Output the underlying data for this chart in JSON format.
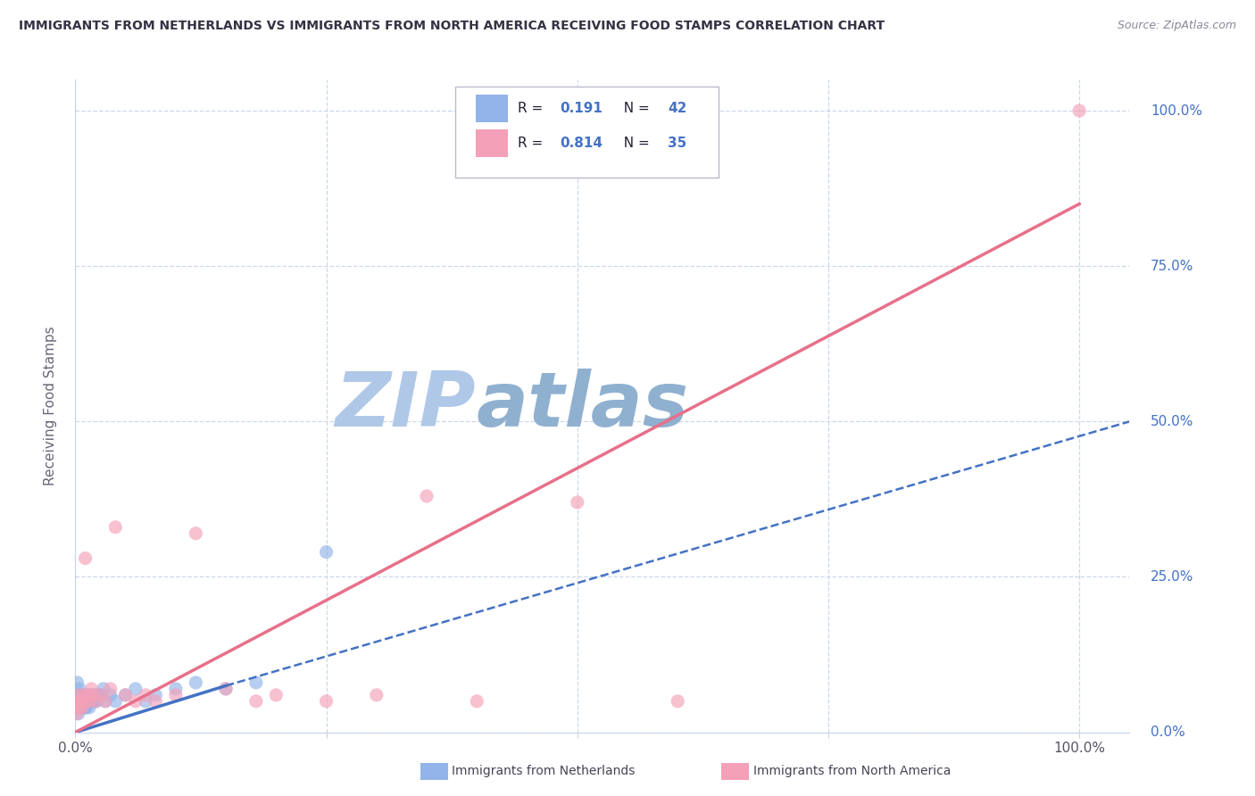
{
  "title": "IMMIGRANTS FROM NETHERLANDS VS IMMIGRANTS FROM NORTH AMERICA RECEIVING FOOD STAMPS CORRELATION CHART",
  "source": "Source: ZipAtlas.com",
  "ylabel": "Receiving Food Stamps",
  "xlabel_netherlands": "Immigrants from Netherlands",
  "xlabel_north_america": "Immigrants from North America",
  "r_netherlands": 0.191,
  "n_netherlands": 42,
  "r_north_america": 0.814,
  "n_north_america": 35,
  "color_netherlands": "#92b4e8",
  "color_north_america": "#f4a0b8",
  "color_blue_text": "#4472c4",
  "trend_netherlands_solid_color": "#4472c4",
  "trend_netherlands_dash_color": "#4472c4",
  "trend_north_america_color": "#e8708a",
  "background_color": "#ffffff",
  "grid_color": "#c8d4e8",
  "watermark": "ZIPatlas",
  "watermark_color_zip": "#b0c8e8",
  "watermark_color_atlas": "#90b0d0",
  "ylim": [
    0.0,
    1.05
  ],
  "xlim": [
    0.0,
    1.05
  ],
  "ytick_labels": [
    "0.0%",
    "25.0%",
    "50.0%",
    "75.0%",
    "100.0%"
  ],
  "ytick_vals": [
    0.0,
    0.25,
    0.5,
    0.75,
    1.0
  ],
  "xtick_labels": [
    "0.0%",
    "",
    "",
    "",
    "100.0%"
  ],
  "xtick_vals": [
    0.0,
    0.25,
    0.5,
    0.75,
    1.0
  ],
  "nl_x": [
    0.001,
    0.002,
    0.002,
    0.003,
    0.003,
    0.004,
    0.004,
    0.005,
    0.005,
    0.006,
    0.006,
    0.007,
    0.008,
    0.008,
    0.009,
    0.01,
    0.011,
    0.012,
    0.013,
    0.014,
    0.015,
    0.017,
    0.019,
    0.021,
    0.025,
    0.028,
    0.03,
    0.035,
    0.04,
    0.05,
    0.06,
    0.07,
    0.08,
    0.1,
    0.12,
    0.15,
    0.18,
    0.25,
    0.02,
    0.023,
    0.016,
    0.009
  ],
  "nl_y": [
    0.04,
    0.05,
    0.08,
    0.06,
    0.03,
    0.07,
    0.04,
    0.05,
    0.06,
    0.04,
    0.05,
    0.06,
    0.04,
    0.05,
    0.04,
    0.05,
    0.04,
    0.06,
    0.05,
    0.04,
    0.06,
    0.05,
    0.06,
    0.05,
    0.06,
    0.07,
    0.05,
    0.06,
    0.05,
    0.06,
    0.07,
    0.05,
    0.06,
    0.07,
    0.08,
    0.07,
    0.08,
    0.29,
    0.05,
    0.06,
    0.05,
    0.04
  ],
  "na_x": [
    0.001,
    0.002,
    0.003,
    0.004,
    0.005,
    0.006,
    0.007,
    0.008,
    0.009,
    0.01,
    0.012,
    0.014,
    0.016,
    0.018,
    0.02,
    0.025,
    0.03,
    0.035,
    0.04,
    0.05,
    0.06,
    0.07,
    0.08,
    0.1,
    0.12,
    0.15,
    0.18,
    0.2,
    0.25,
    0.3,
    0.35,
    0.4,
    0.5,
    0.6,
    1.0
  ],
  "na_y": [
    0.03,
    0.04,
    0.06,
    0.05,
    0.04,
    0.05,
    0.04,
    0.06,
    0.05,
    0.28,
    0.06,
    0.05,
    0.07,
    0.06,
    0.05,
    0.06,
    0.05,
    0.07,
    0.33,
    0.06,
    0.05,
    0.06,
    0.05,
    0.06,
    0.32,
    0.07,
    0.05,
    0.06,
    0.05,
    0.06,
    0.38,
    0.05,
    0.37,
    0.05,
    1.0
  ],
  "nl_trend_x0": 0.0,
  "nl_trend_y0": 0.0,
  "nl_trend_x1": 1.0,
  "nl_trend_y1": 0.5,
  "na_trend_x0": 0.0,
  "na_trend_y0": 0.0,
  "na_trend_x1": 1.0,
  "na_trend_y1": 0.85
}
